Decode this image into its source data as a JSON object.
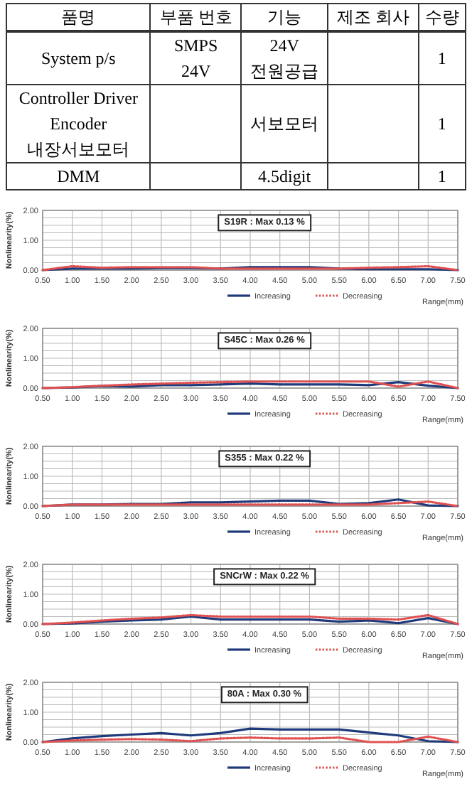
{
  "chart_data": [
    {
      "type": "other",
      "categories": [
        "품명",
        "부품 번호",
        "기능",
        "제조 회사",
        "수량"
      ],
      "cell_labels": [
        [
          "System p/s",
          "SMPS\n24V",
          "24V\n전원공급",
          null,
          "1"
        ],
        [
          "Controller Driver\nEncoder\n내장서보모터",
          null,
          "서보모터",
          null,
          "1"
        ],
        [
          "DMM",
          null,
          "4.5digit",
          null,
          "1"
        ]
      ]
    },
    {
      "type": "line",
      "annotations": [
        "S19R : Max 0.13 %"
      ],
      "xlabel": "Range(mm)",
      "ylabel": "Nonlinearity(%)",
      "x": [
        0.5,
        1,
        1.5,
        2,
        2.5,
        3,
        3.5,
        4,
        4.5,
        5,
        5.5,
        6,
        6.5,
        7,
        7.5
      ],
      "xlim": [
        0.5,
        7.5
      ],
      "xticks": [
        {
          "value": 0.5,
          "label": "0.50"
        },
        {
          "value": 1,
          "label": "1.00"
        },
        {
          "value": 1.5,
          "label": "1.50"
        },
        {
          "value": 2,
          "label": "2.00"
        },
        {
          "value": 2.5,
          "label": "2.50"
        },
        {
          "value": 3,
          "label": "3.00"
        },
        {
          "value": 3.5,
          "label": "3.50"
        },
        {
          "value": 4,
          "label": "4.00"
        },
        {
          "value": 4.5,
          "label": "4.50"
        },
        {
          "value": 5,
          "label": "5.00"
        },
        {
          "value": 5.5,
          "label": "5.50"
        },
        {
          "value": 6,
          "label": "6.00"
        },
        {
          "value": 6.5,
          "label": "6.50"
        },
        {
          "value": 7,
          "label": "7.00"
        },
        {
          "value": 7.5,
          "label": "7.50"
        }
      ],
      "ylim": [
        0,
        2
      ],
      "yticks": [
        {
          "value": 0,
          "label": "0.00"
        },
        {
          "value": 0.25,
          "label": null
        },
        {
          "value": 0.5,
          "label": null
        },
        {
          "value": 0.75,
          "label": null
        },
        {
          "value": 1,
          "label": "1.00"
        },
        {
          "value": 1.25,
          "label": null
        },
        {
          "value": 1.5,
          "label": null
        },
        {
          "value": 1.75,
          "label": null
        },
        {
          "value": 2,
          "label": "2.00"
        }
      ],
      "grid": true,
      "legend": "bottom",
      "series": [
        {
          "name": "Increasing",
          "color": "#1f3a7a",
          "line_style": "solid",
          "values": [
            0,
            0.05,
            0.05,
            0.05,
            0.07,
            0.07,
            0.05,
            0.1,
            0.1,
            0.1,
            0.05,
            0.03,
            0.03,
            0.03,
            0
          ]
        },
        {
          "name": "Decreasing",
          "color": "#e05050",
          "line_style": "dotted",
          "values": [
            0,
            0.13,
            0.08,
            0.1,
            0.1,
            0.1,
            0.05,
            0.05,
            0.05,
            0.05,
            0.05,
            0.08,
            0.1,
            0.13,
            0
          ]
        }
      ]
    },
    {
      "type": "line",
      "annotations": [
        "S45C : Max 0.26 %"
      ],
      "xlabel": "Range(mm)",
      "ylabel": "Nonlinearity(%)",
      "x": [
        0.5,
        1,
        1.5,
        2,
        2.5,
        3,
        3.5,
        4,
        4.5,
        5,
        5.5,
        6,
        6.5,
        7,
        7.5
      ],
      "xlim": [
        0.5,
        7.5
      ],
      "xticks": [
        {
          "value": 0.5,
          "label": "0.50"
        },
        {
          "value": 1,
          "label": "1.00"
        },
        {
          "value": 1.5,
          "label": "1.50"
        },
        {
          "value": 2,
          "label": "2.00"
        },
        {
          "value": 2.5,
          "label": "2.50"
        },
        {
          "value": 3,
          "label": "3.00"
        },
        {
          "value": 3.5,
          "label": "3.50"
        },
        {
          "value": 4,
          "label": "4.00"
        },
        {
          "value": 4.5,
          "label": "4.50"
        },
        {
          "value": 5,
          "label": "5.00"
        },
        {
          "value": 5.5,
          "label": "5.50"
        },
        {
          "value": 6,
          "label": "6.00"
        },
        {
          "value": 6.5,
          "label": "6.50"
        },
        {
          "value": 7,
          "label": "7.00"
        },
        {
          "value": 7.5,
          "label": "7.50"
        }
      ],
      "ylim": [
        0,
        2
      ],
      "yticks": [
        {
          "value": 0,
          "label": "0.00"
        },
        {
          "value": 0.25,
          "label": null
        },
        {
          "value": 0.5,
          "label": null
        },
        {
          "value": 0.75,
          "label": null
        },
        {
          "value": 1,
          "label": "1.00"
        },
        {
          "value": 1.25,
          "label": null
        },
        {
          "value": 1.5,
          "label": null
        },
        {
          "value": 1.75,
          "label": null
        },
        {
          "value": 2,
          "label": "2.00"
        }
      ],
      "grid": true,
      "legend": "bottom",
      "series": [
        {
          "name": "Increasing",
          "color": "#1f3a7a",
          "line_style": "solid",
          "values": [
            0,
            0.02,
            0.07,
            0.05,
            0.1,
            0.1,
            0.12,
            0.15,
            0.12,
            0.12,
            0.12,
            0.1,
            0.2,
            0.08,
            0
          ]
        },
        {
          "name": "Decreasing",
          "color": "#e05050",
          "line_style": "dotted",
          "values": [
            0,
            0.03,
            0.08,
            0.12,
            0.15,
            0.18,
            0.2,
            0.22,
            0.22,
            0.22,
            0.22,
            0.22,
            0.05,
            0.22,
            0
          ]
        }
      ]
    },
    {
      "type": "line",
      "annotations": [
        "S355 : Max 0.22 %"
      ],
      "xlabel": "Range(mm)",
      "ylabel": "Nonlinearity(%)",
      "x": [
        0.5,
        1,
        1.5,
        2,
        2.5,
        3,
        3.5,
        4,
        4.5,
        5,
        5.5,
        6,
        6.5,
        7,
        7.5
      ],
      "xlim": [
        0.5,
        7.5
      ],
      "xticks": [
        {
          "value": 0.5,
          "label": "0.50"
        },
        {
          "value": 1,
          "label": "1.00"
        },
        {
          "value": 1.5,
          "label": "1.50"
        },
        {
          "value": 2,
          "label": "2.00"
        },
        {
          "value": 2.5,
          "label": "2.50"
        },
        {
          "value": 3,
          "label": "3.00"
        },
        {
          "value": 3.5,
          "label": "3.50"
        },
        {
          "value": 4,
          "label": "4.00"
        },
        {
          "value": 4.5,
          "label": "4.50"
        },
        {
          "value": 5,
          "label": "5.00"
        },
        {
          "value": 5.5,
          "label": "5.50"
        },
        {
          "value": 6,
          "label": "6.00"
        },
        {
          "value": 6.5,
          "label": "6.50"
        },
        {
          "value": 7,
          "label": "7.00"
        },
        {
          "value": 7.5,
          "label": "7.50"
        }
      ],
      "ylim": [
        0,
        2
      ],
      "yticks": [
        {
          "value": 0,
          "label": "0.00"
        },
        {
          "value": 0.25,
          "label": null
        },
        {
          "value": 0.5,
          "label": null
        },
        {
          "value": 0.75,
          "label": null
        },
        {
          "value": 1,
          "label": "1.00"
        },
        {
          "value": 1.25,
          "label": null
        },
        {
          "value": 1.5,
          "label": null
        },
        {
          "value": 1.75,
          "label": null
        },
        {
          "value": 2,
          "label": "2.00"
        }
      ],
      "grid": true,
      "legend": "bottom",
      "series": [
        {
          "name": "Increasing",
          "color": "#1f3a7a",
          "line_style": "solid",
          "values": [
            0,
            0.05,
            0.05,
            0.07,
            0.07,
            0.12,
            0.12,
            0.15,
            0.18,
            0.18,
            0.07,
            0.1,
            0.22,
            0.02,
            0
          ]
        },
        {
          "name": "Decreasing",
          "color": "#e05050",
          "line_style": "dotted",
          "values": [
            0,
            0.05,
            0.05,
            0.05,
            0.05,
            0.05,
            0.05,
            0.05,
            0.05,
            0.05,
            0.05,
            0.05,
            0.1,
            0.15,
            0
          ]
        }
      ]
    },
    {
      "type": "line",
      "annotations": [
        "SNCrW : Max 0.22 %"
      ],
      "xlabel": "Range(mm)",
      "ylabel": "Nonlinearity(%)",
      "x": [
        0.5,
        1,
        1.5,
        2,
        2.5,
        3,
        3.5,
        4,
        4.5,
        5,
        5.5,
        6,
        6.5,
        7,
        7.5
      ],
      "xlim": [
        0.5,
        7.5
      ],
      "xticks": [
        {
          "value": 0.5,
          "label": "0.50"
        },
        {
          "value": 1,
          "label": "1.00"
        },
        {
          "value": 1.5,
          "label": "1.50"
        },
        {
          "value": 2,
          "label": "2.00"
        },
        {
          "value": 2.5,
          "label": "2.50"
        },
        {
          "value": 3,
          "label": "3.00"
        },
        {
          "value": 3.5,
          "label": "3.50"
        },
        {
          "value": 4,
          "label": "4.00"
        },
        {
          "value": 4.5,
          "label": "4.50"
        },
        {
          "value": 5,
          "label": "5.00"
        },
        {
          "value": 5.5,
          "label": "5.50"
        },
        {
          "value": 6,
          "label": "6.00"
        },
        {
          "value": 6.5,
          "label": "6.50"
        },
        {
          "value": 7,
          "label": "7.00"
        },
        {
          "value": 7.5,
          "label": "7.50"
        }
      ],
      "ylim": [
        0,
        2
      ],
      "yticks": [
        {
          "value": 0,
          "label": "0.00"
        },
        {
          "value": 0.25,
          "label": null
        },
        {
          "value": 0.5,
          "label": null
        },
        {
          "value": 0.75,
          "label": null
        },
        {
          "value": 1,
          "label": "1.00"
        },
        {
          "value": 1.25,
          "label": null
        },
        {
          "value": 1.5,
          "label": null
        },
        {
          "value": 1.75,
          "label": null
        },
        {
          "value": 2,
          "label": "2.00"
        }
      ],
      "grid": true,
      "legend": "bottom",
      "series": [
        {
          "name": "Increasing",
          "color": "#1f3a7a",
          "line_style": "solid",
          "values": [
            0,
            0.02,
            0.08,
            0.12,
            0.15,
            0.25,
            0.15,
            0.15,
            0.15,
            0.15,
            0.08,
            0.12,
            0.03,
            0.2,
            0
          ]
        },
        {
          "name": "Decreasing",
          "color": "#e05050",
          "line_style": "dotted",
          "values": [
            0,
            0.05,
            0.12,
            0.18,
            0.22,
            0.3,
            0.25,
            0.25,
            0.25,
            0.25,
            0.18,
            0.18,
            0.15,
            0.3,
            0
          ]
        }
      ]
    },
    {
      "type": "line",
      "annotations": [
        "80A : Max 0.30 %"
      ],
      "xlabel": "Range(mm)",
      "ylabel": "Nonlinearity(%)",
      "x": [
        0.5,
        1,
        1.5,
        2,
        2.5,
        3,
        3.5,
        4,
        4.5,
        5,
        5.5,
        6,
        6.5,
        7,
        7.5
      ],
      "xlim": [
        0.5,
        7.5
      ],
      "xticks": [
        {
          "value": 0.5,
          "label": "0.50"
        },
        {
          "value": 1,
          "label": "1.00"
        },
        {
          "value": 1.5,
          "label": "1.50"
        },
        {
          "value": 2,
          "label": "2.00"
        },
        {
          "value": 2.5,
          "label": "2.50"
        },
        {
          "value": 3,
          "label": "3.00"
        },
        {
          "value": 3.5,
          "label": "3.50"
        },
        {
          "value": 4,
          "label": "4.00"
        },
        {
          "value": 4.5,
          "label": "4.50"
        },
        {
          "value": 5,
          "label": "5.00"
        },
        {
          "value": 5.5,
          "label": "5.50"
        },
        {
          "value": 6,
          "label": "6.00"
        },
        {
          "value": 6.5,
          "label": "6.50"
        },
        {
          "value": 7,
          "label": "7.00"
        },
        {
          "value": 7.5,
          "label": "7.50"
        }
      ],
      "ylim": [
        0,
        2
      ],
      "yticks": [
        {
          "value": 0,
          "label": "0.00"
        },
        {
          "value": 0.25,
          "label": null
        },
        {
          "value": 0.5,
          "label": null
        },
        {
          "value": 0.75,
          "label": null
        },
        {
          "value": 1,
          "label": "1.00"
        },
        {
          "value": 1.25,
          "label": null
        },
        {
          "value": 1.5,
          "label": null
        },
        {
          "value": 1.75,
          "label": null
        },
        {
          "value": 2,
          "label": "2.00"
        }
      ],
      "grid": true,
      "legend": "bottom",
      "series": [
        {
          "name": "Increasing",
          "color": "#1f3a7a",
          "line_style": "solid",
          "values": [
            0,
            0.12,
            0.2,
            0.25,
            0.3,
            0.22,
            0.3,
            0.45,
            0.42,
            0.42,
            0.42,
            0.32,
            0.22,
            0.03,
            0
          ]
        },
        {
          "name": "Decreasing",
          "color": "#e05050",
          "line_style": "dotted",
          "values": [
            0,
            0.05,
            0.08,
            0.1,
            0.08,
            0.03,
            0.12,
            0.15,
            0.12,
            0.12,
            0.15,
            0,
            0,
            0.18,
            0
          ]
        }
      ]
    }
  ]
}
